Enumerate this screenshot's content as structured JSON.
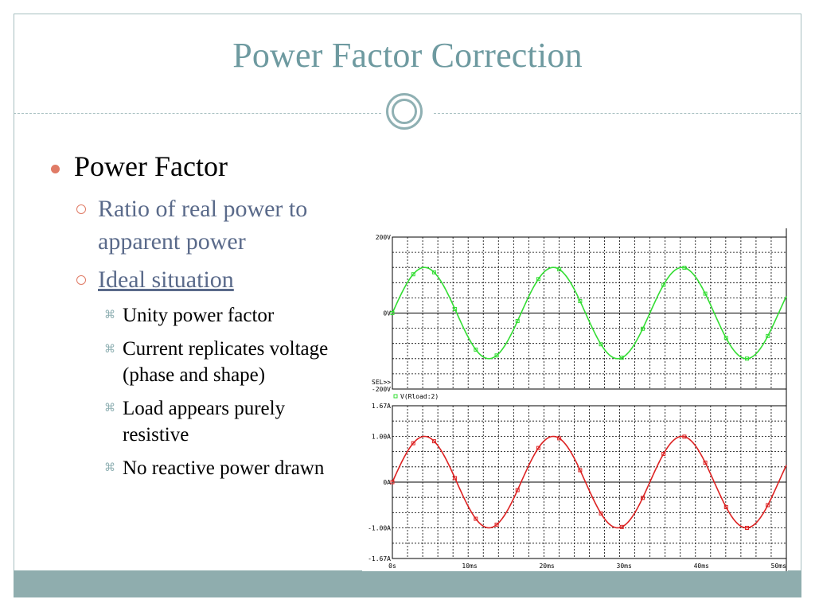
{
  "slide": {
    "title": "Power Factor Correction",
    "bullet_l1": "Power Factor",
    "bullet_l2a_line1": "Ratio of real power to",
    "bullet_l2a_line2": "apparent power",
    "bullet_l2b": "Ideal situation",
    "bullet_l3": [
      {
        "line1": "Unity power factor",
        "line2": ""
      },
      {
        "line1": "Current replicates voltage",
        "line2": "(phase and shape)"
      },
      {
        "line1": "Load appears purely",
        "line2": "resistive"
      },
      {
        "line1": "No reactive power drawn",
        "line2": ""
      }
    ]
  },
  "colors": {
    "title": "#6e9aa0",
    "accent": "#e07b66",
    "frame": "#a7bfc0",
    "footer": "#8fadae",
    "voltage_trace": "#33dd33",
    "current_trace": "#dd2222"
  },
  "chart_data": [
    {
      "type": "line",
      "title": "",
      "y_tick_labels": [
        "200V",
        "0V",
        "-200V"
      ],
      "ylim": [
        -200,
        200
      ],
      "legend_label": "V(Rload:2)",
      "selector_label": "SEL>>",
      "series": [
        {
          "name": "V(Rload:2)",
          "waveform": "sine",
          "amplitude": 120,
          "frequency_hz": 60,
          "phase_deg": 0
        }
      ],
      "xlim": [
        0,
        51
      ],
      "grid": true
    },
    {
      "type": "line",
      "title": "",
      "y_tick_labels": [
        "1.67A",
        "1.00A",
        "0A",
        "-1.00A",
        "-1.67A"
      ],
      "ylim": [
        -1.67,
        1.67
      ],
      "series": [
        {
          "waveform": "sine",
          "amplitude": 1.0,
          "frequency_hz": 60,
          "phase_deg": 0
        }
      ],
      "x_tick_labels": [
        "0s",
        "10ms",
        "20ms",
        "30ms",
        "40ms",
        "50ms"
      ],
      "xlim": [
        0,
        51
      ],
      "grid": true
    }
  ]
}
